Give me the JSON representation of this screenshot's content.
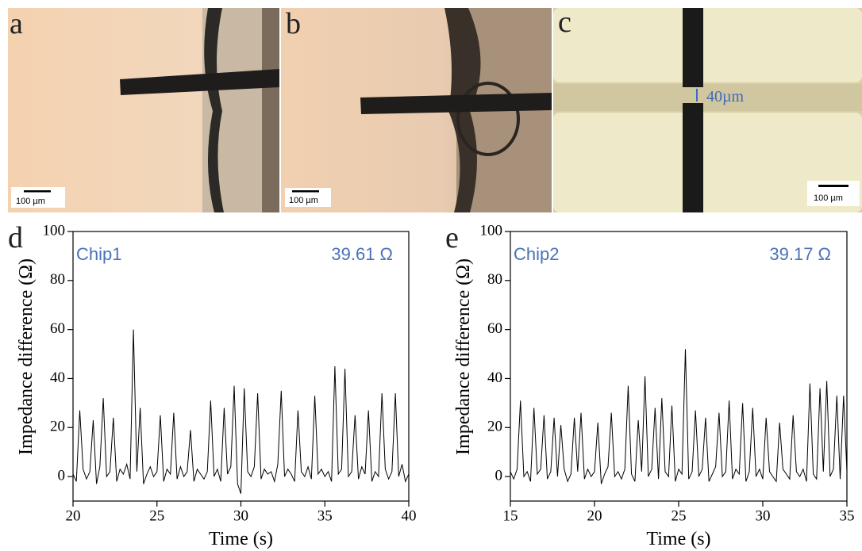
{
  "panels": [
    {
      "label": "a",
      "scale_bar": "100 µm"
    },
    {
      "label": "b",
      "scale_bar": "100 µm"
    },
    {
      "label": "c",
      "scale_bar": "100 µm",
      "annotation": "40µm"
    }
  ],
  "chart_data": [
    {
      "type": "line",
      "panel_label": "d",
      "annotation_left": "Chip1",
      "annotation_right": "39.61 Ω",
      "xlabel": "Time (s)",
      "ylabel": "Impedance difference (Ω)",
      "color": "#000000",
      "xlim": [
        20,
        40
      ],
      "xticks": [
        20,
        25,
        30,
        35,
        40
      ],
      "ylim": [
        -10,
        100
      ],
      "yticks": [
        0,
        20,
        40,
        60,
        80,
        100
      ],
      "x": [
        20,
        20.2,
        20.4,
        20.6,
        20.8,
        21,
        21.2,
        21.4,
        21.6,
        21.8,
        22,
        22.2,
        22.4,
        22.6,
        22.8,
        23,
        23.2,
        23.4,
        23.6,
        23.8,
        24,
        24.2,
        24.4,
        24.6,
        24.8,
        25,
        25.2,
        25.4,
        25.6,
        25.8,
        26,
        26.2,
        26.4,
        26.6,
        26.8,
        27,
        27.2,
        27.4,
        27.6,
        27.8,
        28,
        28.2,
        28.4,
        28.6,
        28.8,
        29,
        29.2,
        29.4,
        29.6,
        29.8,
        30,
        30.2,
        30.4,
        30.6,
        30.8,
        31,
        31.2,
        31.4,
        31.6,
        31.8,
        32,
        32.2,
        32.4,
        32.6,
        32.8,
        33,
        33.2,
        33.4,
        33.6,
        33.8,
        34,
        34.2,
        34.4,
        34.6,
        34.8,
        35,
        35.2,
        35.4,
        35.6,
        35.8,
        36,
        36.2,
        36.4,
        36.6,
        36.8,
        37,
        37.2,
        37.4,
        37.6,
        37.8,
        38,
        38.2,
        38.4,
        38.6,
        38.8,
        39,
        39.2,
        39.4,
        39.6,
        39.8,
        40
      ],
      "values": [
        1,
        -2,
        27,
        3,
        -1,
        2,
        23,
        -3,
        4,
        32,
        0,
        2,
        24,
        -2,
        3,
        1,
        5,
        -1,
        60,
        2,
        28,
        -3,
        1,
        4,
        0,
        2,
        25,
        -2,
        3,
        1,
        26,
        -1,
        4,
        0,
        2,
        19,
        -2,
        3,
        1,
        -1,
        2,
        31,
        0,
        3,
        -2,
        28,
        1,
        4,
        37,
        -3,
        -7,
        36,
        2,
        0,
        4,
        34,
        -1,
        3,
        1,
        2,
        -2,
        5,
        35,
        0,
        3,
        1,
        -2,
        27,
        2,
        0,
        4,
        -1,
        33,
        1,
        3,
        0,
        2,
        -2,
        45,
        1,
        3,
        44,
        0,
        2,
        25,
        -1,
        4,
        1,
        27,
        -2,
        2,
        0,
        34,
        3,
        -1,
        2,
        34,
        0,
        5,
        -2,
        1
      ]
    },
    {
      "type": "line",
      "panel_label": "e",
      "annotation_left": "Chip2",
      "annotation_right": "39.17 Ω",
      "xlabel": "Time (s)",
      "ylabel": "Impedance difference (Ω)",
      "color": "#000000",
      "xlim": [
        15,
        35
      ],
      "xticks": [
        15,
        20,
        25,
        30,
        35
      ],
      "ylim": [
        -10,
        100
      ],
      "yticks": [
        0,
        20,
        40,
        60,
        80,
        100
      ],
      "x": [
        15,
        15.2,
        15.4,
        15.6,
        15.8,
        16,
        16.2,
        16.4,
        16.6,
        16.8,
        17,
        17.2,
        17.4,
        17.6,
        17.8,
        18,
        18.2,
        18.4,
        18.6,
        18.8,
        19,
        19.2,
        19.4,
        19.6,
        19.8,
        20,
        20.2,
        20.4,
        20.6,
        20.8,
        21,
        21.2,
        21.4,
        21.6,
        21.8,
        22,
        22.2,
        22.4,
        22.6,
        22.8,
        23,
        23.2,
        23.4,
        23.6,
        23.8,
        24,
        24.2,
        24.4,
        24.6,
        24.8,
        25,
        25.2,
        25.4,
        25.6,
        25.8,
        26,
        26.2,
        26.4,
        26.6,
        26.8,
        27,
        27.2,
        27.4,
        27.6,
        27.8,
        28,
        28.2,
        28.4,
        28.6,
        28.8,
        29,
        29.2,
        29.4,
        29.6,
        29.8,
        30,
        30.2,
        30.4,
        30.6,
        30.8,
        31,
        31.2,
        31.4,
        31.6,
        31.8,
        32,
        32.2,
        32.4,
        32.6,
        32.8,
        33,
        33.2,
        33.4,
        33.6,
        33.8,
        34,
        34.2,
        34.4,
        34.6,
        34.8,
        35
      ],
      "values": [
        2,
        -1,
        3,
        31,
        0,
        2,
        -2,
        28,
        1,
        3,
        25,
        -1,
        2,
        24,
        0,
        21,
        3,
        -2,
        1,
        24,
        2,
        26,
        -1,
        3,
        0,
        2,
        22,
        -3,
        1,
        4,
        26,
        0,
        2,
        -1,
        3,
        37,
        1,
        -2,
        23,
        2,
        41,
        0,
        3,
        28,
        -1,
        32,
        2,
        0,
        29,
        -2,
        3,
        1,
        52,
        -1,
        2,
        27,
        0,
        3,
        24,
        -2,
        1,
        4,
        26,
        0,
        2,
        31,
        -1,
        3,
        1,
        30,
        -2,
        2,
        28,
        0,
        3,
        -1,
        24,
        2,
        0,
        -2,
        22,
        3,
        1,
        -1,
        25,
        2,
        0,
        3,
        -2,
        38,
        1,
        -1,
        36,
        2,
        39,
        0,
        3,
        33,
        -1,
        33,
        2
      ]
    }
  ]
}
